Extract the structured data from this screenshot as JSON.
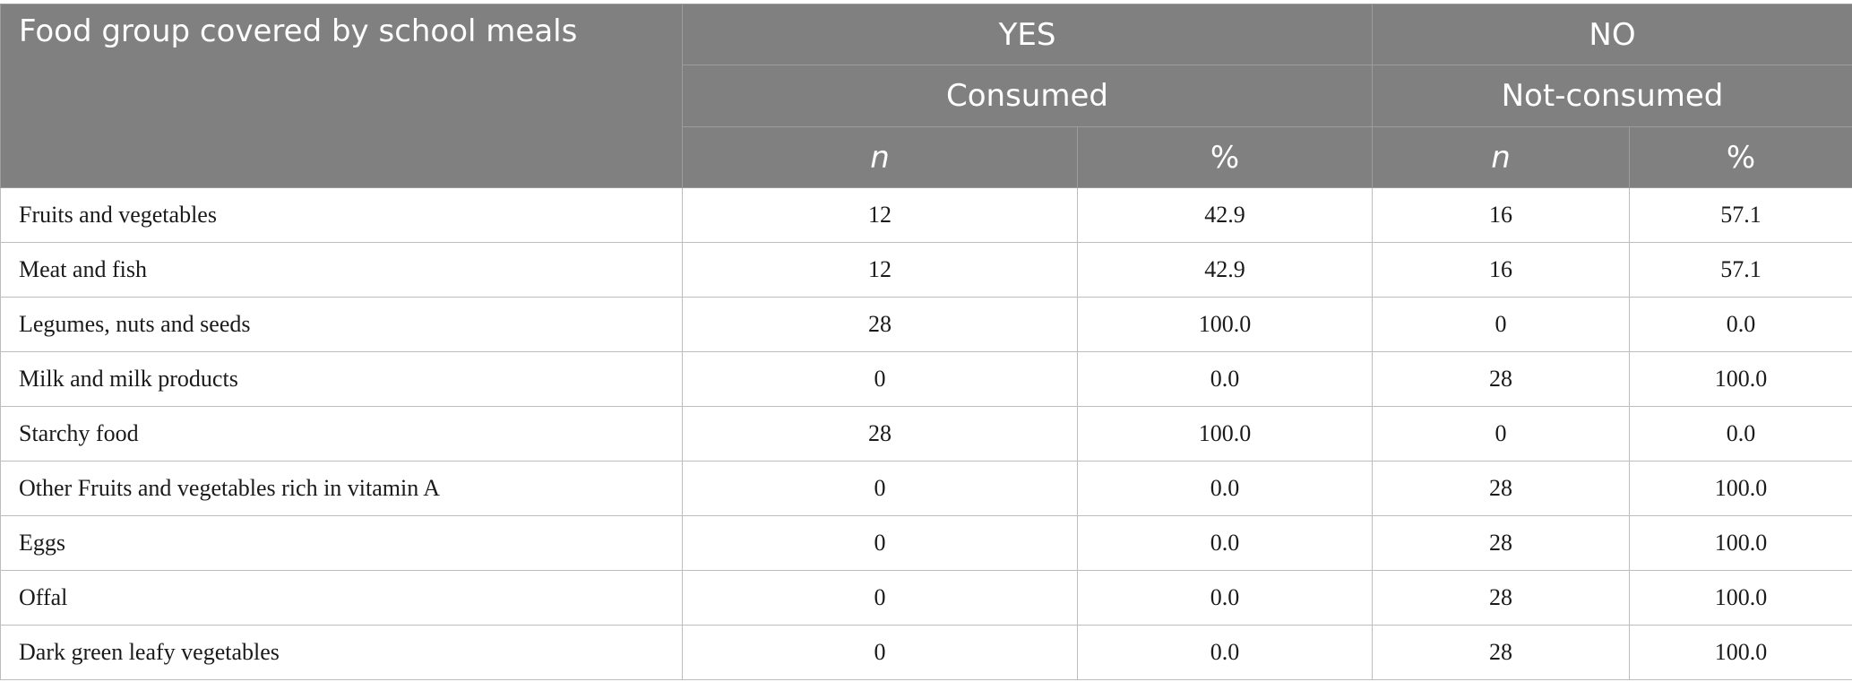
{
  "table": {
    "header": {
      "food_group": "Food group covered by school meals",
      "yes": "YES",
      "no": "NO",
      "consumed": "Consumed",
      "not_consumed": "Not-consumed",
      "n": "n",
      "pct": "%"
    },
    "rows": [
      {
        "food": "Fruits and vegetables",
        "yes_n": "12",
        "yes_pct": "42.9",
        "no_n": "16",
        "no_pct": "57.1"
      },
      {
        "food": "Meat and fish",
        "yes_n": "12",
        "yes_pct": "42.9",
        "no_n": "16",
        "no_pct": "57.1"
      },
      {
        "food": "Legumes, nuts and seeds",
        "yes_n": "28",
        "yes_pct": "100.0",
        "no_n": "0",
        "no_pct": "0.0"
      },
      {
        "food": "Milk and milk products",
        "yes_n": "0",
        "yes_pct": "0.0",
        "no_n": "28",
        "no_pct": "100.0"
      },
      {
        "food": "Starchy food",
        "yes_n": "28",
        "yes_pct": "100.0",
        "no_n": "0",
        "no_pct": "0.0"
      },
      {
        "food": "Other Fruits and vegetables rich in vitamin A",
        "yes_n": "0",
        "yes_pct": "0.0",
        "no_n": "28",
        "no_pct": "100.0"
      },
      {
        "food": "Eggs",
        "yes_n": "0",
        "yes_pct": "0.0",
        "no_n": "28",
        "no_pct": "100.0"
      },
      {
        "food": "Offal",
        "yes_n": "0",
        "yes_pct": "0.0",
        "no_n": "28",
        "no_pct": "100.0"
      },
      {
        "food": "Dark green leafy vegetables",
        "yes_n": "0",
        "yes_pct": "0.0",
        "no_n": "28",
        "no_pct": "100.0"
      }
    ]
  }
}
